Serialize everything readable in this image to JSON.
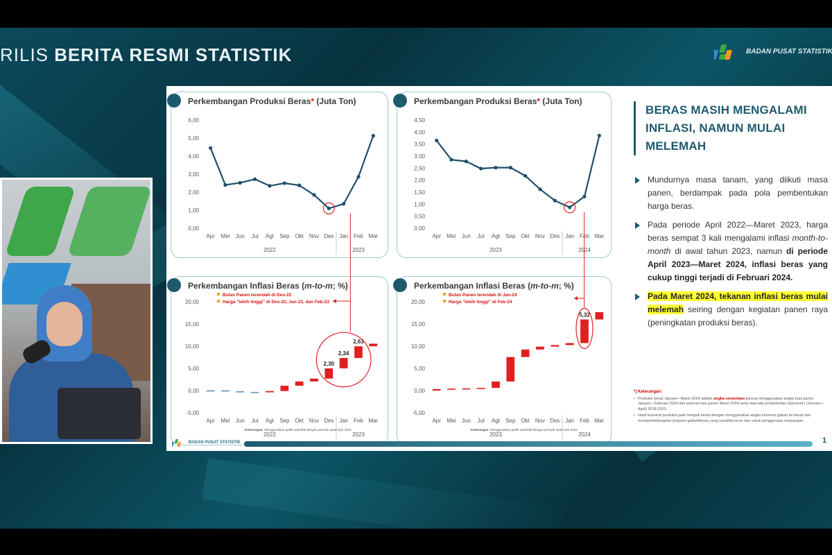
{
  "header": {
    "title_light": "RILIS",
    "title_bold": "BERITA RESMI STATISTIK",
    "logo_text": "BADAN PUSAT STATISTIK"
  },
  "slide": {
    "headline": "BERAS MASIH MENGALAMI INFLASI, NAMUN MULAI MELEMAH",
    "bullets": [
      {
        "text": "Mundurnya masa tanam, yang diikuti masa panen, berdampak pada pola pembentukan harga beras."
      },
      {
        "pre": "Pada periode April 2022—Maret 2023, harga beras sempat 3 kali mengalami inflasi ",
        "ital": "month-to-month",
        "mid": " di awal tahun 2023, namun ",
        "bold": "di periode April 2023—Maret 2024, inflasi beras yang cukup tinggi terjadi di Februari 2024."
      },
      {
        "highlight": "Pada Maret 2024, tekanan inflasi beras mulai melemah",
        "post": " seiring dengan kegiatan panen raya (peningkatan produksi beras)."
      }
    ],
    "notes_title": "*) Keterangan:",
    "notes": [
      {
        "pre": "Produksi beras Januari—Maret 2024 adalah ",
        "red": "angka sementara",
        "post": " karena menggunakan angka luas panen Januari—Februari 2024 dan potensi luas panen Maret 2024 serta rata-rata produktivitas subround I (Januari—April) 2018-2023."
      },
      {
        "pre": "Hasil konversi produksi padi menjadi beras dengan menggunakan angka konversi gabah ke beras dan mempertimbangkan proporsi gabah/beras yang susut/tercecer dan untuk penggunaan nonpangan.",
        "red": "",
        "post": ""
      }
    ],
    "footer_logo": "BADAN PUSAT STATISTIK",
    "page_number": "1"
  },
  "chart_data": [
    {
      "type": "line",
      "title": "Perkembangan Produksi Beras* (Juta Ton)",
      "categories": [
        "Apr",
        "Mei",
        "Jun",
        "Jul",
        "Agt",
        "Sep",
        "Okt",
        "Nov",
        "Des",
        "Jan",
        "Feb",
        "Mar"
      ],
      "year_labels": [
        "2022",
        "2023"
      ],
      "values": [
        4.45,
        2.4,
        2.52,
        2.72,
        2.35,
        2.5,
        2.38,
        1.85,
        1.1,
        1.35,
        2.85,
        5.13
      ],
      "ylim": [
        0,
        6
      ],
      "yticks": [
        "0,00",
        "1,00",
        "2,00",
        "3,00",
        "4,00",
        "5,00",
        "6,00"
      ],
      "color": "#1e4f6b",
      "circled_index": 8
    },
    {
      "type": "line",
      "title": "Perkembangan Produksi Beras* (Juta Ton)",
      "categories": [
        "Apr",
        "Mei",
        "Jun",
        "Jul",
        "Agt",
        "Sep",
        "Okt",
        "Nov",
        "Des",
        "Jan",
        "Feb",
        "Mar"
      ],
      "year_labels": [
        "2023",
        "2024"
      ],
      "values": [
        3.65,
        2.85,
        2.78,
        2.48,
        2.52,
        2.52,
        2.18,
        1.62,
        1.15,
        0.87,
        1.32,
        3.85
      ],
      "ylim": [
        0,
        4.5
      ],
      "yticks": [
        "0,00",
        "0,50",
        "1,00",
        "1,50",
        "2,00",
        "2,50",
        "3,00",
        "3,50",
        "4,00",
        "4,50"
      ],
      "color": "#1e4f6b",
      "circled_index": 9
    },
    {
      "type": "waterfall",
      "title": "Perkembangan Inflasi Beras (m-to-m; %)",
      "categories": [
        "Apr",
        "Mei",
        "Jun",
        "Jul",
        "Agt",
        "Sep",
        "Okt",
        "Nov",
        "Des",
        "Jan",
        "Feb",
        "Mar"
      ],
      "year_labels": [
        "2022",
        "2023"
      ],
      "deltas": [
        0.05,
        -0.2,
        -0.15,
        -0.1,
        0.3,
        1.2,
        0.95,
        0.65,
        2.3,
        2.34,
        2.63,
        0.6
      ],
      "data_labels": {
        "8": "2,30",
        "9": "2,34",
        "10": "2,63"
      },
      "ylim": [
        -5,
        20
      ],
      "yticks": [
        "-5,00",
        "0,00",
        "5,00",
        "10,00",
        "15,00",
        "20,00"
      ],
      "legend": [
        "Bulan Panen terendah di Des-22",
        "Harga \"lebih tinggi\" di Des-22, Jan-23, dan Feb-23"
      ],
      "note_label": "Keterangan:",
      "note": "Menggunakan grafik waterfall dengan periode awal April 2022"
    },
    {
      "type": "waterfall",
      "title": "Perkembangan Inflasi Beras (m-to-m; %)",
      "categories": [
        "Apr",
        "Mei",
        "Jun",
        "Jul",
        "Agt",
        "Sep",
        "Okt",
        "Nov",
        "Des",
        "Jan",
        "Feb",
        "Mar"
      ],
      "year_labels": [
        "2023",
        "2024"
      ],
      "deltas": [
        0.35,
        0.1,
        0.05,
        0.1,
        1.45,
        5.5,
        1.7,
        0.65,
        0.35,
        0.45,
        5.32,
        1.65
      ],
      "data_labels": {
        "10": "5,32"
      },
      "ylim": [
        -5,
        20
      ],
      "yticks": [
        "-5,00",
        "0,00",
        "5,00",
        "10,00",
        "15,00",
        "20,00"
      ],
      "legend": [
        "Bulan Panen terendah di Jan-24",
        "Harga \"lebih tinggi\" di Feb-24"
      ],
      "note_label": "Keterangan:",
      "note": "Menggunakan grafik waterfall dengan periode awal April 2023"
    }
  ]
}
